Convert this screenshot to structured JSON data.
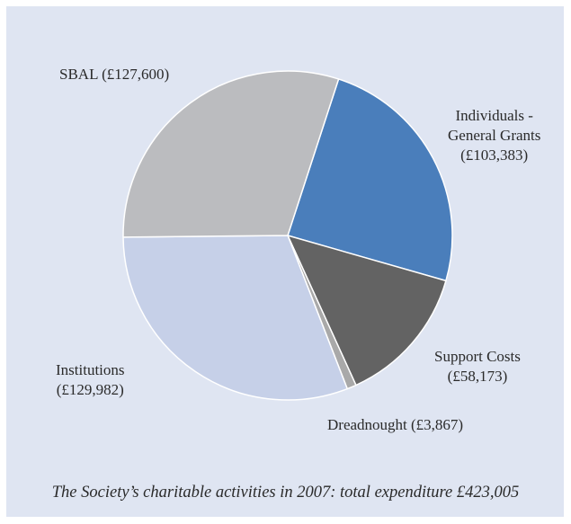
{
  "chart_data": {
    "type": "pie",
    "caption": "The Society’s charitable activities in 2007: total expenditure £423,005",
    "slices": [
      {
        "label": "Individuals - General Grants",
        "value_text": "(£103,383)",
        "value": 103383,
        "color": "#4a7ebb"
      },
      {
        "label": "Support Costs",
        "value_text": "(£58,173)",
        "value": 58173,
        "color": "#636363"
      },
      {
        "label": "Dreadnought",
        "value_text": "(£3,867)",
        "value": 3867,
        "color": "#a9a9a9"
      },
      {
        "label": "Institutions",
        "value_text": "(£129,982)",
        "value": 129982,
        "color": "#c6d0e8"
      },
      {
        "label": "SBAL",
        "value_text": "(£127,600)",
        "value": 127600,
        "color": "#bbbcbf"
      }
    ],
    "label_lines": {
      "individuals_1": "Individuals -",
      "individuals_2": "General Grants"
    }
  }
}
